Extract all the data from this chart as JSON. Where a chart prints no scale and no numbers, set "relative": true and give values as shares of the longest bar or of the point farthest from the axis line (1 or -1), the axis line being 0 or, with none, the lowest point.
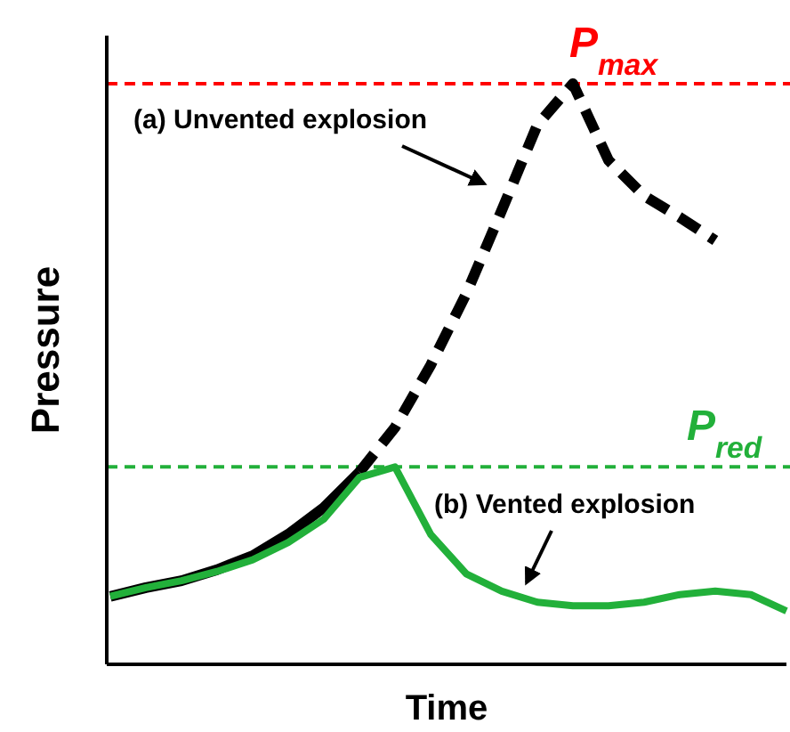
{
  "chart_data": {
    "type": "line",
    "xlabel": "Time",
    "ylabel": "Pressure",
    "categories": [
      null,
      null,
      null,
      null,
      null,
      null,
      null,
      null,
      null,
      null,
      null,
      null,
      null,
      null,
      null,
      null,
      null,
      null,
      null,
      null
    ],
    "series": [
      {
        "color": "#000000",
        "line_style": "solid",
        "values": [
          0.117,
          0.132,
          0.144,
          0.163,
          0.187,
          0.224,
          0.27,
          0.331,
          null,
          null,
          null,
          null,
          null,
          null,
          null,
          null,
          null,
          null,
          null,
          null
        ]
      },
      {
        "color": "#000000",
        "line_style": "dashed",
        "values": [
          null,
          null,
          null,
          null,
          null,
          null,
          null,
          0.331,
          0.408,
          0.515,
          0.638,
          0.782,
          0.929,
          1,
          0.868,
          0.807,
          0.77,
          0.73,
          null,
          null
        ]
      },
      {
        "color": "#22b03a",
        "line_style": "solid",
        "values": [
          0.117,
          0.132,
          0.144,
          0.16,
          0.18,
          0.21,
          0.25,
          0.322,
          0.34,
          0.224,
          0.156,
          0.126,
          0.107,
          0.101,
          0.101,
          0.107,
          0.12,
          0.126,
          0.12,
          0.092
        ]
      }
    ],
    "ref_lines": [
      {
        "axis": "y",
        "value": 1,
        "label": "P$_{max}$",
        "color": "#ff0000",
        "line_style": "dashed"
      },
      {
        "axis": "y",
        "value": 0.34,
        "label": "P$_{red}$",
        "color": "#22b03a",
        "line_style": "dashed"
      }
    ],
    "annotations": [
      "(a) Unvented explosion",
      "(b) Vented explosion"
    ],
    "relative": true
  }
}
